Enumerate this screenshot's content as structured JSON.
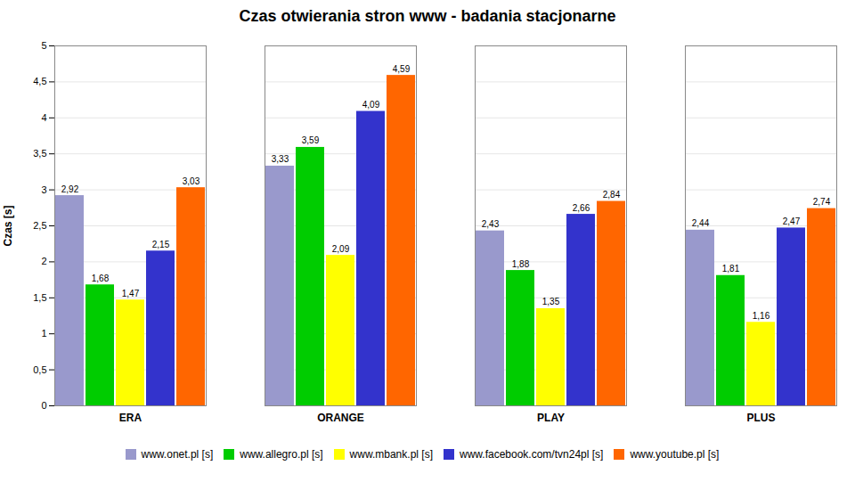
{
  "chart_data": {
    "type": "bar",
    "title": "Czas otwierania stron www - badania stacjonarne",
    "ylabel": "Czas [s]",
    "categories": [
      "ERA",
      "ORANGE",
      "PLAY",
      "PLUS"
    ],
    "series": [
      {
        "name": "www.onet.pl [s]",
        "color": "#9999CC",
        "values": [
          2.92,
          3.33,
          2.43,
          2.44
        ],
        "value_labels": [
          "2,92",
          "3,33",
          "2,43",
          "2,44"
        ]
      },
      {
        "name": "www.allegro.pl [s]",
        "color": "#00CC00",
        "values": [
          1.68,
          3.59,
          1.88,
          1.81
        ],
        "value_labels": [
          "1,68",
          "3,59",
          "1,88",
          "1,81"
        ]
      },
      {
        "name": "www.mbank.pl [s]",
        "color": "#FFFF00",
        "values": [
          1.47,
          2.09,
          1.35,
          1.16
        ],
        "value_labels": [
          "1,47",
          "2,09",
          "1,35",
          "1,16"
        ]
      },
      {
        "name": "www.facebook.com/tvn24pl [s]",
        "color": "#3333CC",
        "values": [
          2.15,
          4.09,
          2.66,
          2.47
        ],
        "value_labels": [
          "2,15",
          "4,09",
          "2,66",
          "2,47"
        ]
      },
      {
        "name": "www.youtube.pl [s]",
        "color": "#FF6600",
        "values": [
          3.03,
          4.59,
          2.84,
          2.74
        ],
        "value_labels": [
          "3,03",
          "4,59",
          "2,84",
          "2,74"
        ]
      }
    ],
    "ylim": [
      0,
      5
    ],
    "yticks": [
      0,
      {
        "value": 0.5,
        "label": "0,5"
      },
      1,
      {
        "value": 1.5,
        "label": "1,5"
      },
      2,
      {
        "value": 2.5,
        "label": "2,5"
      },
      3,
      {
        "value": 3.5,
        "label": "3,5"
      },
      4,
      {
        "value": 4.5,
        "label": "4,5"
      },
      5
    ],
    "grid": true,
    "data_labels": true,
    "legend": "bottom"
  }
}
